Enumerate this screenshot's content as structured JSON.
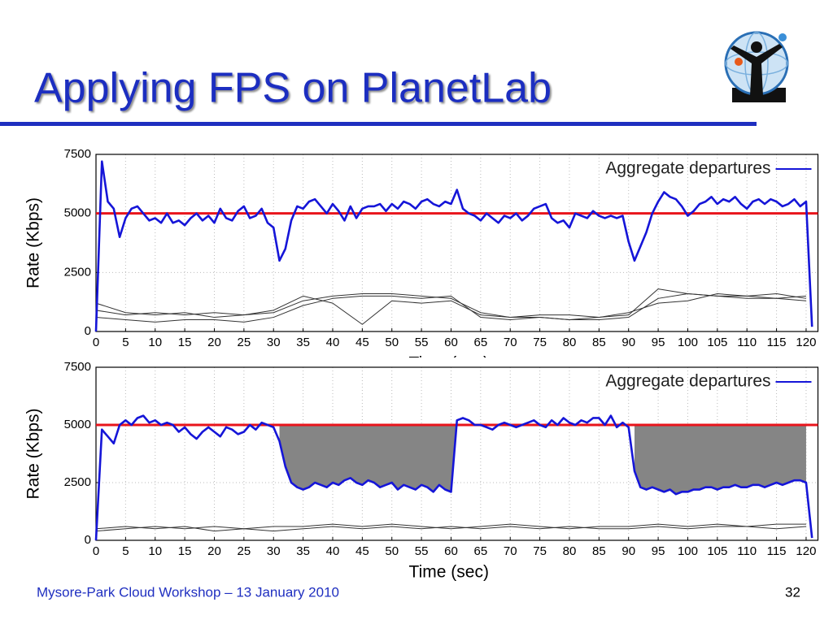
{
  "slide": {
    "title": "Applying FPS on PlanetLab",
    "footer": "Mysore-Park Cloud Workshop – 13 January 2010",
    "page_number": "32"
  },
  "chart_data": [
    {
      "type": "line",
      "y_label": "Rate (Kbps)",
      "x_label": "Time (sec)",
      "x": [
        0,
        1,
        2,
        3,
        4,
        5,
        6,
        7,
        8,
        9,
        10,
        11,
        12,
        13,
        14,
        15,
        16,
        17,
        18,
        19,
        20,
        21,
        22,
        23,
        24,
        25,
        26,
        27,
        28,
        29,
        30,
        31,
        32,
        33,
        34,
        35,
        36,
        37,
        38,
        39,
        40,
        41,
        42,
        43,
        44,
        45,
        46,
        47,
        48,
        49,
        50,
        51,
        52,
        53,
        54,
        55,
        56,
        57,
        58,
        59,
        60,
        61,
        62,
        63,
        64,
        65,
        66,
        67,
        68,
        69,
        70,
        71,
        72,
        73,
        74,
        75,
        76,
        77,
        78,
        79,
        80,
        81,
        82,
        83,
        84,
        85,
        86,
        87,
        88,
        89,
        90,
        91,
        92,
        93,
        94,
        95,
        96,
        97,
        98,
        99,
        100,
        101,
        102,
        103,
        104,
        105,
        106,
        107,
        108,
        109,
        110,
        111,
        112,
        113,
        114,
        115,
        116,
        117,
        118,
        119,
        120,
        121
      ],
      "xlim": [
        0,
        122
      ],
      "ylim": [
        0,
        7500
      ],
      "xticks": [
        0,
        5,
        10,
        15,
        20,
        25,
        30,
        35,
        40,
        45,
        50,
        55,
        60,
        65,
        70,
        75,
        80,
        85,
        90,
        95,
        100,
        105,
        110,
        115,
        120
      ],
      "yticks": [
        0,
        2500,
        5000,
        7500
      ],
      "grid": true,
      "threshold": 5000,
      "threshold_color": "#e8141b",
      "series": [
        {
          "name": "Aggregate departures",
          "color": "#1515d8",
          "width": 2.6,
          "values": [
            0,
            7200,
            5500,
            5200,
            4000,
            4800,
            5200,
            5300,
            5000,
            4700,
            4800,
            4600,
            5000,
            4600,
            4700,
            4500,
            4800,
            5000,
            4700,
            4900,
            4600,
            5200,
            4800,
            4700,
            5100,
            5300,
            4800,
            4900,
            5200,
            4600,
            4400,
            3000,
            3500,
            4700,
            5300,
            5200,
            5500,
            5600,
            5300,
            5000,
            5400,
            5100,
            4700,
            5300,
            4800,
            5200,
            5300,
            5300,
            5400,
            5100,
            5400,
            5200,
            5500,
            5400,
            5200,
            5500,
            5600,
            5400,
            5300,
            5500,
            5400,
            6000,
            5200,
            5000,
            4900,
            4700,
            5000,
            4800,
            4600,
            4900,
            4800,
            5000,
            4700,
            4900,
            5200,
            5300,
            5400,
            4800,
            4600,
            4700,
            4400,
            5000,
            4900,
            4800,
            5100,
            4900,
            4800,
            4900,
            4800,
            4900,
            3800,
            3000,
            3600,
            4200,
            5000,
            5500,
            5900,
            5700,
            5600,
            5300,
            4900,
            5100,
            5400,
            5500,
            5700,
            5400,
            5600,
            5500,
            5700,
            5400,
            5200,
            5500,
            5600,
            5400,
            5600,
            5500,
            5300,
            5400,
            5600,
            5300,
            5500,
            200
          ]
        },
        {
          "color": "#333333",
          "width": 1,
          "x": [
            0,
            5,
            10,
            15,
            20,
            25,
            30,
            35,
            40,
            45,
            50,
            55,
            60,
            65,
            70,
            75,
            80,
            85,
            90,
            95,
            100,
            105,
            110,
            115,
            120
          ],
          "values": [
            1200,
            800,
            700,
            800,
            600,
            700,
            800,
            1300,
            1500,
            1600,
            1600,
            1500,
            1400,
            800,
            600,
            600,
            500,
            600,
            700,
            1800,
            1600,
            1500,
            1400,
            1400,
            1300
          ]
        },
        {
          "color": "#333333",
          "width": 1,
          "x": [
            0,
            5,
            10,
            15,
            20,
            25,
            30,
            35,
            40,
            45,
            50,
            55,
            60,
            65,
            70,
            75,
            80,
            85,
            90,
            95,
            100,
            105,
            110,
            115,
            120
          ],
          "values": [
            600,
            500,
            400,
            500,
            500,
            400,
            600,
            1100,
            1400,
            1500,
            1500,
            1400,
            1500,
            600,
            500,
            600,
            500,
            500,
            600,
            1400,
            1600,
            1500,
            1500,
            1400,
            1500
          ]
        },
        {
          "color": "#333333",
          "width": 1,
          "x": [
            0,
            5,
            10,
            15,
            20,
            25,
            30,
            35,
            40,
            45,
            50,
            55,
            60,
            65,
            70,
            75,
            80,
            85,
            90,
            95,
            100,
            105,
            110,
            115,
            120
          ],
          "values": [
            900,
            700,
            800,
            700,
            800,
            700,
            900,
            1500,
            1200,
            300,
            1300,
            1200,
            1300,
            700,
            600,
            700,
            700,
            600,
            800,
            1200,
            1300,
            1600,
            1500,
            1600,
            1400
          ]
        }
      ]
    },
    {
      "type": "line",
      "y_label": "Rate (Kbps)",
      "x_label": "Time (sec)",
      "x": [
        0,
        1,
        2,
        3,
        4,
        5,
        6,
        7,
        8,
        9,
        10,
        11,
        12,
        13,
        14,
        15,
        16,
        17,
        18,
        19,
        20,
        21,
        22,
        23,
        24,
        25,
        26,
        27,
        28,
        29,
        30,
        31,
        32,
        33,
        34,
        35,
        36,
        37,
        38,
        39,
        40,
        41,
        42,
        43,
        44,
        45,
        46,
        47,
        48,
        49,
        50,
        51,
        52,
        53,
        54,
        55,
        56,
        57,
        58,
        59,
        60,
        61,
        62,
        63,
        64,
        65,
        66,
        67,
        68,
        69,
        70,
        71,
        72,
        73,
        74,
        75,
        76,
        77,
        78,
        79,
        80,
        81,
        82,
        83,
        84,
        85,
        86,
        87,
        88,
        89,
        90,
        91,
        92,
        93,
        94,
        95,
        96,
        97,
        98,
        99,
        100,
        101,
        102,
        103,
        104,
        105,
        106,
        107,
        108,
        109,
        110,
        111,
        112,
        113,
        114,
        115,
        116,
        117,
        118,
        119,
        120,
        121
      ],
      "xlim": [
        0,
        122
      ],
      "ylim": [
        0,
        7500
      ],
      "xticks": [
        0,
        5,
        10,
        15,
        20,
        25,
        30,
        35,
        40,
        45,
        50,
        55,
        60,
        65,
        70,
        75,
        80,
        85,
        90,
        95,
        100,
        105,
        110,
        115,
        120
      ],
      "yticks": [
        0,
        2500,
        5000,
        7500
      ],
      "grid": true,
      "threshold": 5000,
      "threshold_color": "#e8141b",
      "shaded_ranges": [
        [
          31,
          61
        ],
        [
          91,
          120
        ]
      ],
      "shade_color": "#858585",
      "series": [
        {
          "name": "Aggregate departures",
          "color": "#1515d8",
          "width": 2.6,
          "values": [
            0,
            4800,
            4500,
            4200,
            5000,
            5200,
            5000,
            5300,
            5400,
            5100,
            5200,
            5000,
            5100,
            5000,
            4700,
            4900,
            4600,
            4400,
            4700,
            4900,
            4700,
            4500,
            4900,
            4800,
            4600,
            4700,
            5000,
            4800,
            5100,
            5000,
            4900,
            4300,
            3200,
            2500,
            2300,
            2200,
            2300,
            2500,
            2400,
            2300,
            2500,
            2400,
            2600,
            2700,
            2500,
            2400,
            2600,
            2500,
            2300,
            2400,
            2500,
            2200,
            2400,
            2300,
            2200,
            2400,
            2300,
            2100,
            2400,
            2200,
            2100,
            5200,
            5300,
            5200,
            5000,
            5000,
            4900,
            4800,
            5000,
            5100,
            5000,
            4900,
            5000,
            5100,
            5200,
            5000,
            4900,
            5200,
            5000,
            5300,
            5100,
            5000,
            5200,
            5100,
            5300,
            5300,
            5000,
            5400,
            4900,
            5100,
            4900,
            3000,
            2300,
            2200,
            2300,
            2200,
            2100,
            2200,
            2000,
            2100,
            2100,
            2200,
            2200,
            2300,
            2300,
            2200,
            2300,
            2300,
            2400,
            2300,
            2300,
            2400,
            2400,
            2300,
            2400,
            2500,
            2400,
            2500,
            2600,
            2600,
            2500,
            100
          ]
        },
        {
          "color": "#333333",
          "width": 1,
          "x": [
            0,
            5,
            10,
            15,
            20,
            25,
            30,
            35,
            40,
            45,
            50,
            55,
            60,
            65,
            70,
            75,
            80,
            85,
            90,
            95,
            100,
            105,
            110,
            115,
            120
          ],
          "values": [
            400,
            500,
            600,
            500,
            600,
            500,
            600,
            600,
            700,
            600,
            700,
            600,
            500,
            600,
            700,
            600,
            500,
            600,
            600,
            700,
            600,
            700,
            600,
            700,
            700
          ]
        },
        {
          "color": "#333333",
          "width": 1,
          "x": [
            0,
            5,
            10,
            15,
            20,
            25,
            30,
            35,
            40,
            45,
            50,
            55,
            60,
            65,
            70,
            75,
            80,
            85,
            90,
            95,
            100,
            105,
            110,
            115,
            120
          ],
          "values": [
            500,
            600,
            500,
            600,
            400,
            500,
            400,
            500,
            600,
            500,
            600,
            500,
            600,
            500,
            600,
            500,
            600,
            500,
            500,
            600,
            500,
            600,
            600,
            500,
            600
          ]
        }
      ]
    }
  ]
}
